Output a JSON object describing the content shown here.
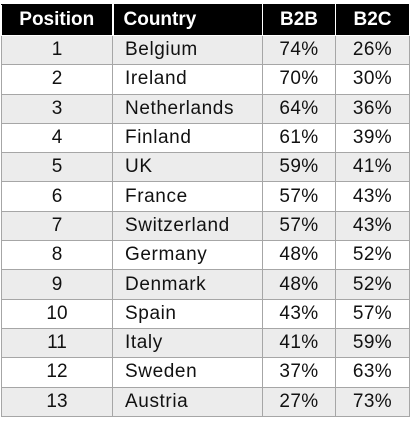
{
  "chart_data": {
    "type": "table",
    "columns": [
      "Position",
      "Country",
      "B2B",
      "B2C"
    ],
    "rows": [
      {
        "position": "1",
        "country": "Belgium",
        "b2b": "74%",
        "b2c": "26%"
      },
      {
        "position": "2",
        "country": "Ireland",
        "b2b": "70%",
        "b2c": "30%"
      },
      {
        "position": "3",
        "country": "Netherlands",
        "b2b": "64%",
        "b2c": "36%"
      },
      {
        "position": "4",
        "country": "Finland",
        "b2b": "61%",
        "b2c": "39%"
      },
      {
        "position": "5",
        "country": "UK",
        "b2b": "59%",
        "b2c": "41%"
      },
      {
        "position": "6",
        "country": "France",
        "b2b": "57%",
        "b2c": "43%"
      },
      {
        "position": "7",
        "country": "Switzerland",
        "b2b": "57%",
        "b2c": "43%"
      },
      {
        "position": "8",
        "country": "Germany",
        "b2b": "48%",
        "b2c": "52%"
      },
      {
        "position": "9",
        "country": "Denmark",
        "b2b": "48%",
        "b2c": "52%"
      },
      {
        "position": "10",
        "country": "Spain",
        "b2b": "43%",
        "b2c": "57%"
      },
      {
        "position": "11",
        "country": "Italy",
        "b2b": "41%",
        "b2c": "59%"
      },
      {
        "position": "12",
        "country": "Sweden",
        "b2b": "37%",
        "b2c": "63%"
      },
      {
        "position": "13",
        "country": "Austria",
        "b2b": "27%",
        "b2c": "73%"
      }
    ]
  },
  "colors": {
    "header_bg": "#000000",
    "header_text": "#ffffff",
    "stripe_bg": "#ececec",
    "row_bg": "#ffffff",
    "grid_line": "#a6a6a6"
  }
}
